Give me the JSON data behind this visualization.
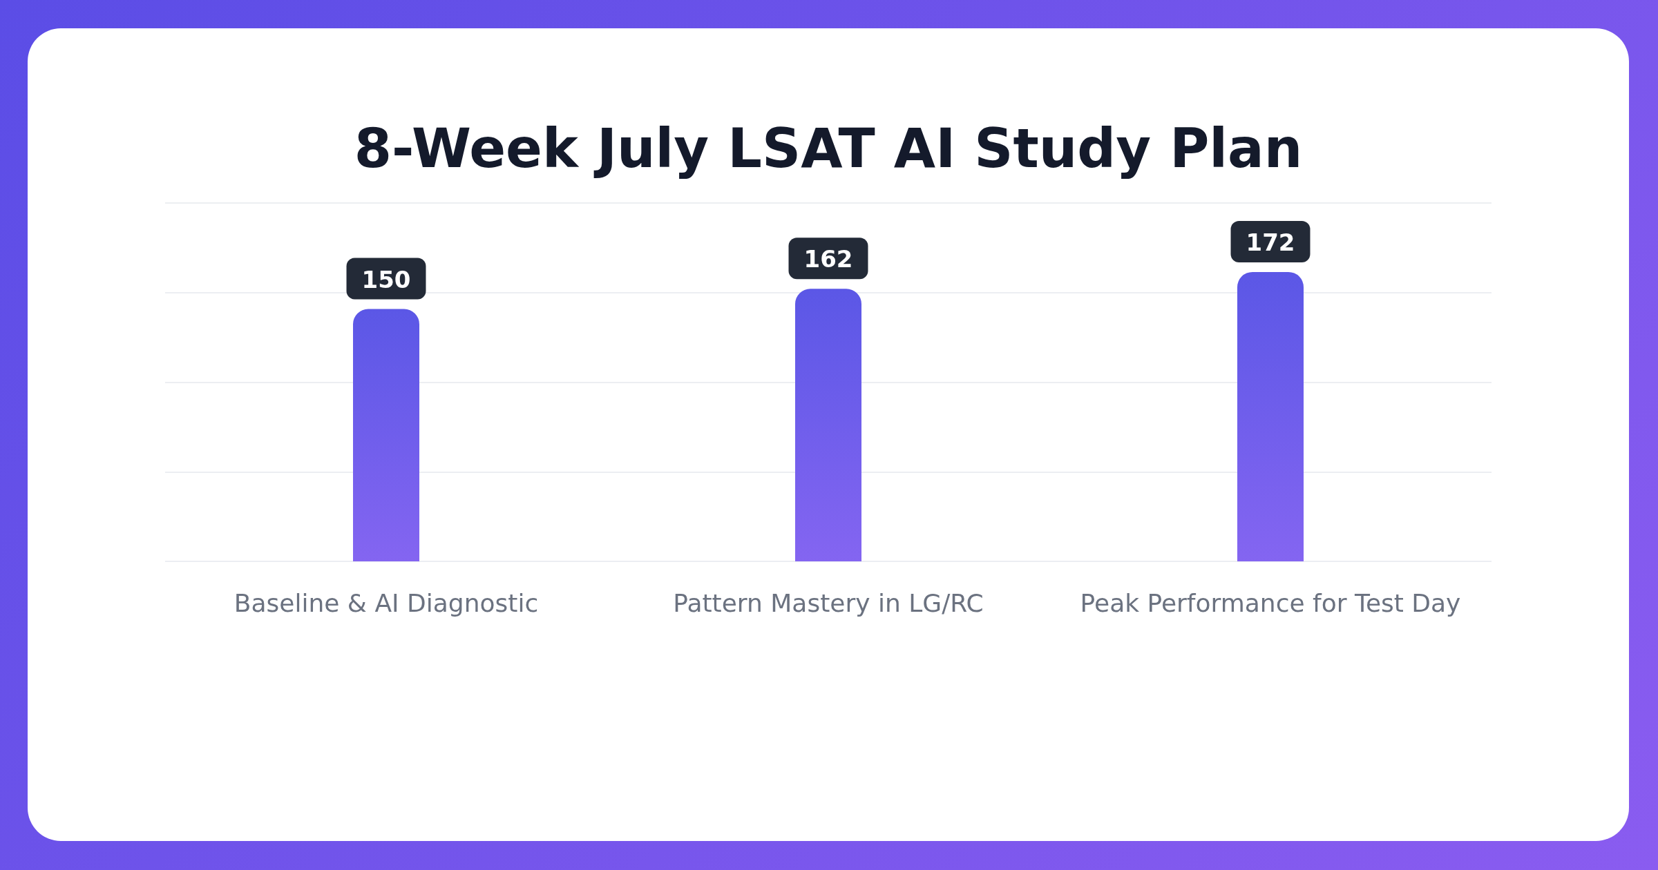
{
  "chart_data": {
    "type": "bar",
    "title": "8-Week July LSAT AI Study Plan",
    "categories": [
      "Baseline & AI Diagnostic",
      "Pattern Mastery in LG/RC",
      "Peak Performance for Test Day"
    ],
    "values": [
      150,
      162,
      172
    ],
    "color": "#5b57e6",
    "ylim": [
      0,
      213
    ],
    "yticks": [
      {
        "value": 0,
        "label": null
      },
      {
        "value": 53.25,
        "label": null
      },
      {
        "value": 106.5,
        "label": null
      },
      {
        "value": 159.75,
        "label": null
      },
      {
        "value": 213,
        "label": null
      }
    ],
    "grid": "y",
    "data_labels": true
  }
}
